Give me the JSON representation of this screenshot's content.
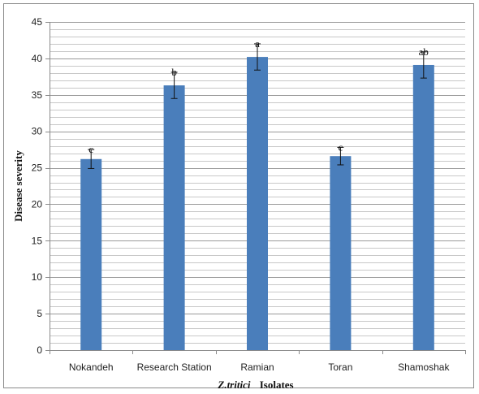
{
  "chart_data": {
    "type": "bar",
    "categories": [
      "Nokandeh",
      "Research Station",
      "Ramian",
      "Toran",
      "Shamoshak"
    ],
    "values": [
      26.2,
      36.3,
      40.2,
      26.6,
      39.1
    ],
    "errors": [
      1.3,
      1.8,
      1.8,
      1.2,
      1.8
    ],
    "significance_letters": [
      "c",
      "b",
      "a",
      "c",
      "ab"
    ],
    "ylabel": "Disease severity",
    "xlabel_italic": "Z.tritici",
    "xlabel_rest": "Isolates",
    "ylim": [
      0,
      45
    ],
    "yticks": [
      0,
      5,
      10,
      15,
      20,
      25,
      30,
      35,
      40,
      45
    ],
    "minor_grid_step": 1,
    "grid": true,
    "bar_color": "#4a7ebb"
  }
}
